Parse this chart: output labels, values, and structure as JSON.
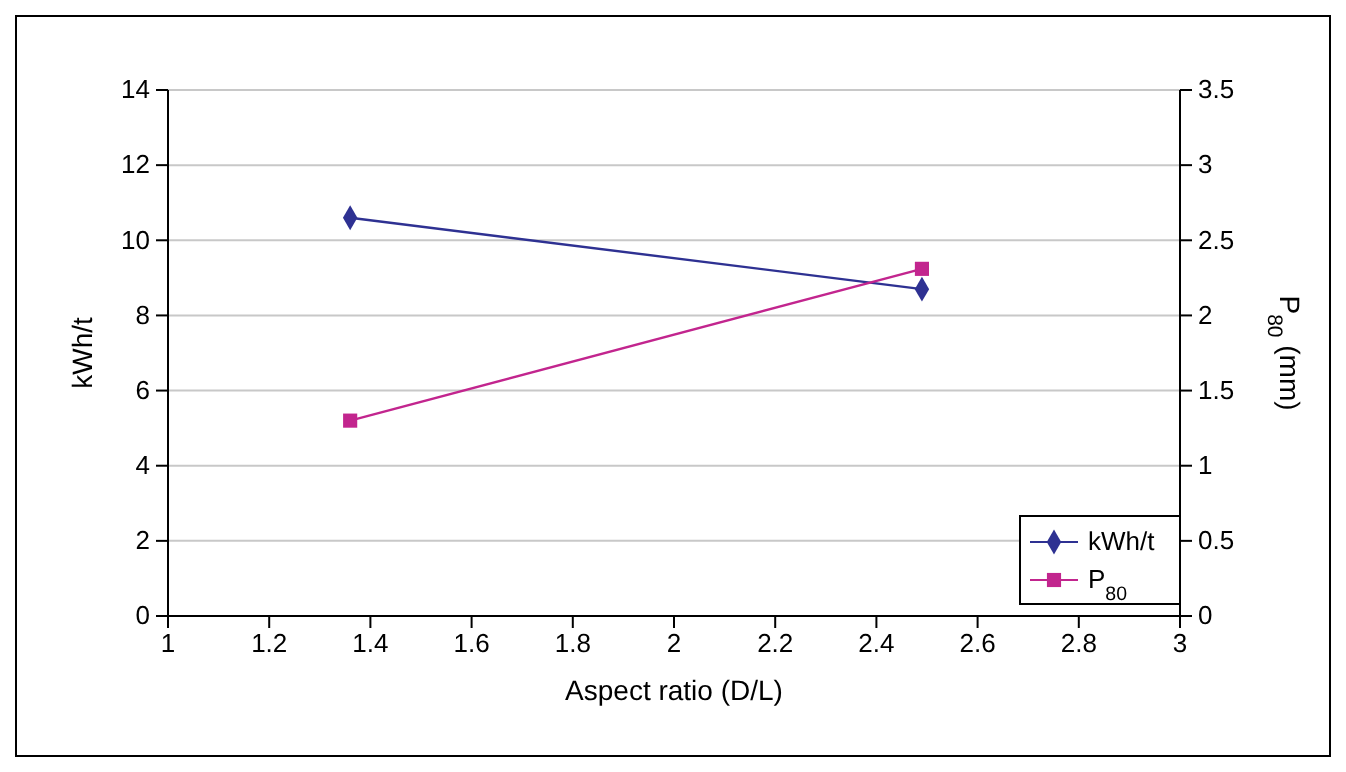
{
  "chart_data": {
    "type": "line",
    "xlabel": "Aspect ratio (D/L)",
    "ylabel": "kWh/t",
    "y2label": "P$_{80}$ (mm)",
    "xlim": [
      1,
      3
    ],
    "xticks": [
      1,
      1.2,
      1.4,
      1.6,
      1.8,
      2,
      2.2,
      2.4,
      2.6,
      2.8,
      3
    ],
    "ylim": [
      0,
      14
    ],
    "yticks": [
      0,
      2,
      4,
      6,
      8,
      10,
      12,
      14
    ],
    "y2lim": [
      0,
      3.5
    ],
    "y2ticks": [
      0,
      0.5,
      1,
      1.5,
      2,
      2.5,
      3,
      3.5
    ],
    "grid": "y",
    "legend": "bottom right",
    "x": [
      1.36,
      2.49
    ],
    "series": [
      {
        "name": "kWh/t",
        "color": "#2e3192",
        "values": [
          10.6,
          8.7
        ],
        "marker": "diamond"
      },
      {
        "name": "P$_{80}$",
        "color": "#c2258e",
        "values": [
          1.3,
          2.31
        ],
        "axis": "y2",
        "marker": "square"
      }
    ]
  }
}
